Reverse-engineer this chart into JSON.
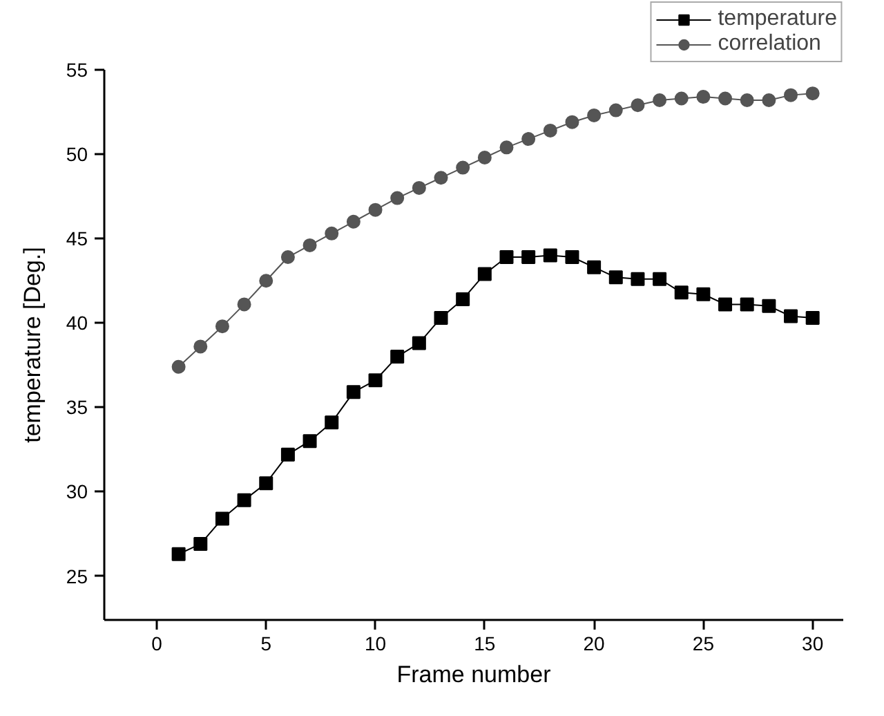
{
  "chart_data": {
    "type": "line",
    "xlabel": "Frame number",
    "ylabel": "temperature [Deg.]",
    "x": [
      1,
      2,
      3,
      4,
      5,
      6,
      7,
      8,
      9,
      10,
      11,
      12,
      13,
      14,
      15,
      16,
      17,
      18,
      19,
      20,
      21,
      22,
      23,
      24,
      25,
      26,
      27,
      28,
      29,
      30
    ],
    "series": [
      {
        "name": "temperature",
        "color": "#000000",
        "marker": "square",
        "values": [
          26.3,
          26.9,
          28.4,
          29.5,
          30.5,
          32.2,
          33.0,
          34.1,
          35.9,
          36.6,
          38.0,
          38.8,
          40.3,
          41.4,
          42.9,
          43.9,
          43.9,
          44.0,
          43.9,
          43.3,
          42.7,
          42.6,
          42.6,
          41.8,
          41.7,
          41.1,
          41.1,
          41.0,
          40.4,
          40.3
        ]
      },
      {
        "name": "correlation",
        "color": "#555555",
        "marker": "circle",
        "values": [
          37.4,
          38.6,
          39.8,
          41.1,
          42.5,
          43.9,
          44.6,
          45.3,
          46.0,
          46.7,
          47.4,
          48.0,
          48.6,
          49.2,
          49.8,
          50.4,
          50.9,
          51.4,
          51.9,
          52.3,
          52.6,
          52.9,
          53.2,
          53.3,
          53.4,
          53.3,
          53.2,
          53.2,
          53.5,
          53.6
        ]
      }
    ],
    "xlim": [
      -2.4,
      31.4
    ],
    "xticks": [
      0,
      5,
      10,
      15,
      20,
      25,
      30
    ],
    "ylim": [
      22.4,
      55
    ],
    "yticks": [
      25,
      30,
      35,
      40,
      45,
      50,
      55
    ],
    "grid": false,
    "legend": "top right",
    "line_style": "solid"
  }
}
